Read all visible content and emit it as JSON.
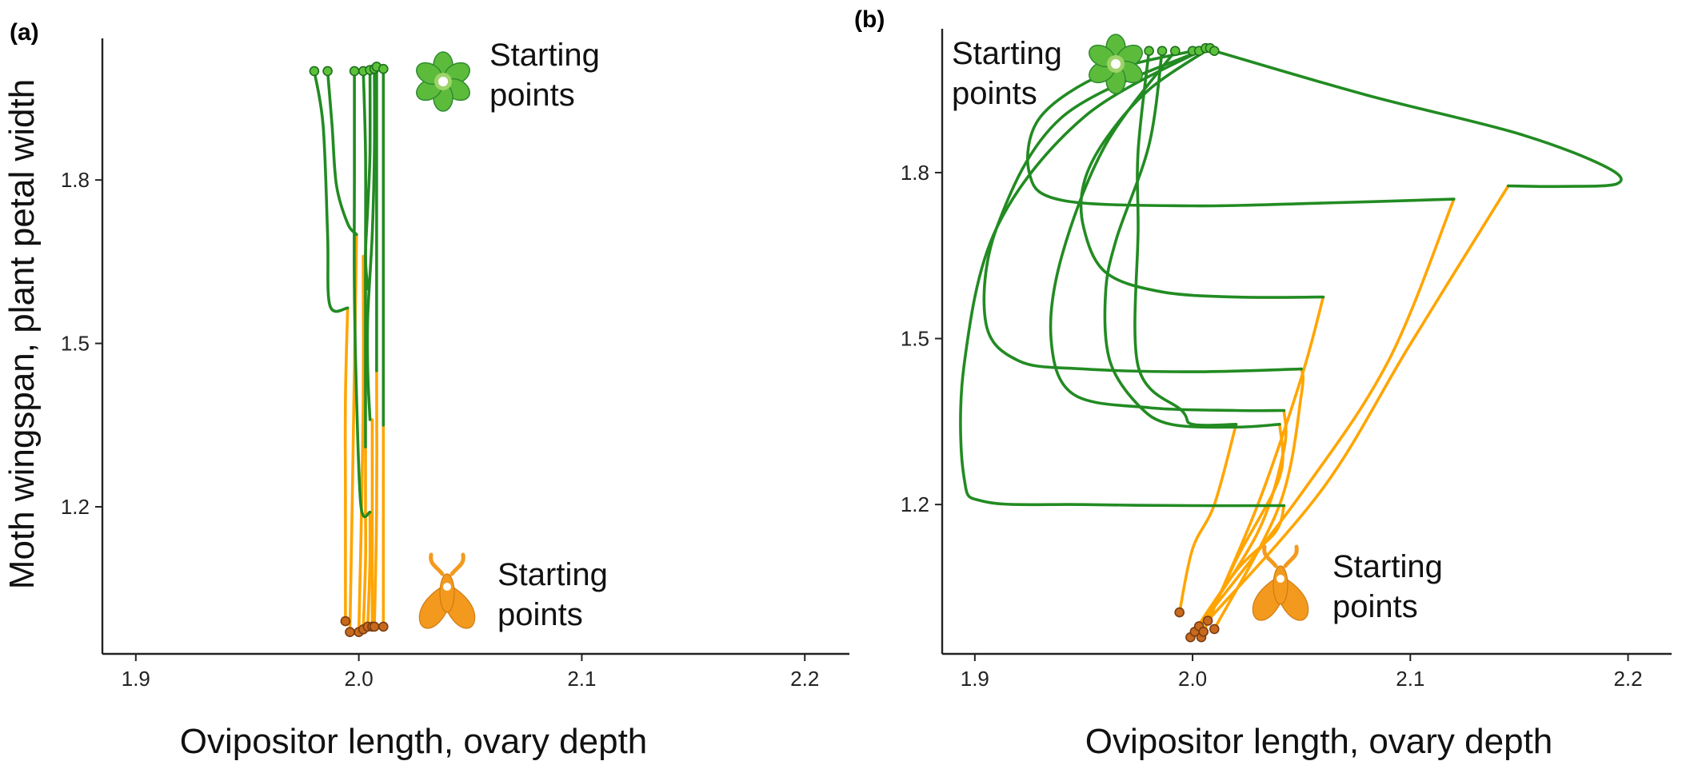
{
  "figure": {
    "y_axis_title": "Moth wingspan, plant petal width",
    "x_axis_title": "Ovipositor length, ovary depth"
  },
  "colors": {
    "plant": "#228B22",
    "moth": "#FFA500",
    "plant_point": "#5CC23A",
    "moth_point": "#C86A1E",
    "flower_petal": "#5DBB3C",
    "moth_icon": "#F39A1E"
  },
  "icons": {
    "plant": "flower-icon",
    "moth": "moth-icon"
  },
  "chart_data": [
    {
      "panel": "(a)",
      "type": "line",
      "xlim": [
        1.885,
        2.22
      ],
      "ylim": [
        0.93,
        2.06
      ],
      "x_ticks": [
        1.9,
        2.0,
        2.1,
        2.2
      ],
      "x_tick_labels": [
        "1.9",
        "2.0",
        "2.1",
        "2.2"
      ],
      "y_ticks": [
        1.2,
        1.5,
        1.8
      ],
      "y_tick_labels": [
        "1.2",
        "1.5",
        "1.8"
      ],
      "grid": false,
      "annotations": [
        {
          "text_lines": [
            "Starting",
            "points"
          ],
          "icon": "flower-icon",
          "near": "plant starting points"
        },
        {
          "text_lines": [
            "Starting",
            "points"
          ],
          "icon": "moth-icon",
          "near": "moth starting points"
        }
      ],
      "series": [
        {
          "trait": "plant",
          "trajectories": [
            [
              [
                1.98,
                2.0
              ],
              [
                1.984,
                1.9
              ],
              [
                1.986,
                1.7
              ],
              [
                1.987,
                1.57
              ],
              [
                1.995,
                1.565
              ]
            ],
            [
              [
                1.986,
                2.0
              ],
              [
                1.988,
                1.9
              ],
              [
                1.99,
                1.79
              ],
              [
                1.995,
                1.72
              ],
              [
                1.999,
                1.7
              ]
            ],
            [
              [
                1.998,
                2.0
              ],
              [
                1.998,
                1.8
              ],
              [
                1.998,
                1.6
              ],
              [
                1.999,
                1.4
              ],
              [
                2.001,
                1.2
              ],
              [
                2.005,
                1.19
              ]
            ],
            [
              [
                2.002,
                2.0
              ],
              [
                2.003,
                1.85
              ],
              [
                2.003,
                1.65
              ],
              [
                2.003,
                1.5
              ],
              [
                2.003,
                1.31
              ]
            ],
            [
              [
                2.005,
                2.002
              ],
              [
                2.005,
                1.85
              ],
              [
                2.004,
                1.75
              ],
              [
                2.003,
                1.66
              ],
              [
                2.004,
                1.6
              ]
            ],
            [
              [
                2.007,
                2.004
              ],
              [
                2.007,
                1.85
              ],
              [
                2.006,
                1.7
              ],
              [
                2.004,
                1.55
              ],
              [
                2.004,
                1.45
              ],
              [
                2.005,
                1.36
              ]
            ],
            [
              [
                2.008,
                2.008
              ],
              [
                2.008,
                1.8
              ],
              [
                2.008,
                1.6
              ],
              [
                2.008,
                1.45
              ]
            ],
            [
              [
                2.011,
                2.004
              ],
              [
                2.011,
                1.8
              ],
              [
                2.011,
                1.55
              ],
              [
                2.011,
                1.35
              ]
            ]
          ]
        },
        {
          "trait": "moth",
          "trajectories": [
            [
              [
                1.994,
                0.99
              ],
              [
                1.994,
                1.2
              ],
              [
                1.994,
                1.4
              ],
              [
                1.995,
                1.565
              ]
            ],
            [
              [
                1.996,
                0.97
              ],
              [
                1.997,
                1.2
              ],
              [
                1.998,
                1.45
              ],
              [
                1.999,
                1.7
              ]
            ],
            [
              [
                2.0,
                0.97
              ],
              [
                2.001,
                1.15
              ],
              [
                2.002,
                1.4
              ],
              [
                2.002,
                1.66
              ]
            ],
            [
              [
                2.002,
                0.975
              ],
              [
                2.003,
                1.1
              ],
              [
                2.003,
                1.2
              ],
              [
                2.003,
                1.31
              ]
            ],
            [
              [
                2.004,
                0.98
              ],
              [
                2.005,
                1.1
              ],
              [
                2.005,
                1.19
              ]
            ],
            [
              [
                2.006,
                0.98
              ],
              [
                2.006,
                1.2
              ],
              [
                2.006,
                1.36
              ]
            ],
            [
              [
                2.007,
                0.98
              ],
              [
                2.008,
                1.2
              ],
              [
                2.008,
                1.45
              ]
            ],
            [
              [
                2.011,
                0.98
              ],
              [
                2.011,
                1.15
              ],
              [
                2.011,
                1.35
              ]
            ]
          ]
        },
        {
          "trait": "plant",
          "role": "starting points",
          "points": [
            [
              1.98,
              2.0
            ],
            [
              1.986,
              2.0
            ],
            [
              1.998,
              2.0
            ],
            [
              2.002,
              2.0
            ],
            [
              2.005,
              2.002
            ],
            [
              2.007,
              2.004
            ],
            [
              2.008,
              2.008
            ],
            [
              2.011,
              2.004
            ]
          ]
        },
        {
          "trait": "moth",
          "role": "starting points",
          "points": [
            [
              1.994,
              0.99
            ],
            [
              1.996,
              0.97
            ],
            [
              2.0,
              0.97
            ],
            [
              2.002,
              0.975
            ],
            [
              2.004,
              0.98
            ],
            [
              2.006,
              0.98
            ],
            [
              2.007,
              0.98
            ],
            [
              2.011,
              0.98
            ]
          ]
        }
      ]
    },
    {
      "panel": "(b)",
      "type": "line",
      "xlim": [
        1.885,
        2.22
      ],
      "ylim": [
        0.93,
        2.06
      ],
      "x_ticks": [
        1.9,
        2.0,
        2.1,
        2.2
      ],
      "x_tick_labels": [
        "1.9",
        "2.0",
        "2.1",
        "2.2"
      ],
      "y_ticks": [
        1.2,
        1.5,
        1.8
      ],
      "y_tick_labels": [
        "1.2",
        "1.5",
        "1.8"
      ],
      "grid": false,
      "annotations": [
        {
          "text_lines": [
            "Starting",
            "points"
          ],
          "icon": "flower-icon",
          "near": "plant starting points"
        },
        {
          "text_lines": [
            "Starting",
            "points"
          ],
          "icon": "moth-icon",
          "near": "moth starting points"
        }
      ],
      "series": [
        {
          "trait": "plant",
          "trajectories": [
            [
              [
                2.01,
                2.02
              ],
              [
                2.08,
                1.94
              ],
              [
                2.15,
                1.87
              ],
              [
                2.19,
                1.81
              ],
              [
                2.195,
                1.78
              ],
              [
                2.17,
                1.775
              ],
              [
                2.145,
                1.776
              ]
            ],
            [
              [
                2.0,
                2.02
              ],
              [
                1.96,
                1.98
              ],
              [
                1.93,
                1.9
              ],
              [
                1.925,
                1.8
              ],
              [
                1.94,
                1.75
              ],
              [
                2.0,
                1.74
              ],
              [
                2.06,
                1.745
              ],
              [
                2.12,
                1.752
              ]
            ],
            [
              [
                2.008,
                2.025
              ],
              [
                1.98,
                1.95
              ],
              [
                1.96,
                1.86
              ],
              [
                1.95,
                1.78
              ],
              [
                1.95,
                1.7
              ],
              [
                1.96,
                1.62
              ],
              [
                1.985,
                1.585
              ],
              [
                2.02,
                1.575
              ],
              [
                2.06,
                1.575
              ]
            ],
            [
              [
                2.003,
                2.02
              ],
              [
                1.94,
                1.9
              ],
              [
                1.91,
                1.7
              ],
              [
                1.905,
                1.53
              ],
              [
                1.92,
                1.46
              ],
              [
                1.95,
                1.445
              ],
              [
                2.0,
                1.44
              ],
              [
                2.05,
                1.445
              ]
            ],
            [
              [
                1.992,
                2.02
              ],
              [
                1.96,
                1.85
              ],
              [
                1.94,
                1.65
              ],
              [
                1.935,
                1.5
              ],
              [
                1.945,
                1.4
              ],
              [
                1.98,
                1.375
              ],
              [
                2.02,
                1.37
              ],
              [
                2.042,
                1.37
              ]
            ],
            [
              [
                2.006,
                2.025
              ],
              [
                1.95,
                1.9
              ],
              [
                1.91,
                1.7
              ],
              [
                1.895,
                1.45
              ],
              [
                1.895,
                1.25
              ],
              [
                1.905,
                1.205
              ],
              [
                1.95,
                1.2
              ],
              [
                2.0,
                1.198
              ],
              [
                2.042,
                1.198
              ]
            ],
            [
              [
                1.986,
                2.02
              ],
              [
                1.98,
                1.85
              ],
              [
                1.965,
                1.68
              ],
              [
                1.96,
                1.58
              ],
              [
                1.962,
                1.46
              ],
              [
                1.975,
                1.38
              ],
              [
                1.99,
                1.345
              ],
              [
                2.02,
                1.34
              ],
              [
                2.04,
                1.345
              ]
            ],
            [
              [
                1.98,
                2.02
              ],
              [
                1.975,
                1.84
              ],
              [
                1.975,
                1.7
              ],
              [
                1.975,
                1.45
              ],
              [
                1.995,
                1.37
              ],
              [
                2.0,
                1.345
              ],
              [
                2.02,
                1.345
              ]
            ]
          ]
        },
        {
          "trait": "moth",
          "trajectories": [
            [
              [
                2.007,
                0.99
              ],
              [
                2.06,
                1.23
              ],
              [
                2.1,
                1.49
              ],
              [
                2.145,
                1.776
              ]
            ],
            [
              [
                2.003,
                0.98
              ],
              [
                2.05,
                1.22
              ],
              [
                2.09,
                1.46
              ],
              [
                2.12,
                1.752
              ]
            ],
            [
              [
                2.005,
                0.97
              ],
              [
                2.03,
                1.2
              ],
              [
                2.05,
                1.43
              ],
              [
                2.06,
                1.575
              ]
            ],
            [
              [
                2.01,
                0.975
              ],
              [
                2.04,
                1.2
              ],
              [
                2.05,
                1.4
              ],
              [
                2.05,
                1.445
              ]
            ],
            [
              [
                2.001,
                0.97
              ],
              [
                2.03,
                1.15
              ],
              [
                2.042,
                1.3
              ],
              [
                2.042,
                1.37
              ]
            ],
            [
              [
                1.999,
                0.96
              ],
              [
                2.02,
                1.08
              ],
              [
                2.038,
                1.15
              ],
              [
                2.042,
                1.198
              ]
            ],
            [
              [
                2.004,
                0.96
              ],
              [
                2.02,
                1.1
              ],
              [
                2.04,
                1.25
              ],
              [
                2.04,
                1.345
              ]
            ],
            [
              [
                1.994,
                1.005
              ],
              [
                2.0,
                1.12
              ],
              [
                2.01,
                1.2
              ],
              [
                2.02,
                1.345
              ]
            ]
          ]
        },
        {
          "trait": "plant",
          "role": "starting points",
          "points": [
            [
              1.98,
              2.02
            ],
            [
              1.986,
              2.02
            ],
            [
              1.992,
              2.02
            ],
            [
              2.0,
              2.02
            ],
            [
              2.003,
              2.02
            ],
            [
              2.006,
              2.025
            ],
            [
              2.008,
              2.025
            ],
            [
              2.01,
              2.02
            ]
          ]
        },
        {
          "trait": "moth",
          "role": "starting points",
          "points": [
            [
              1.994,
              1.005
            ],
            [
              1.999,
              0.96
            ],
            [
              2.001,
              0.97
            ],
            [
              2.003,
              0.98
            ],
            [
              2.004,
              0.96
            ],
            [
              2.005,
              0.97
            ],
            [
              2.007,
              0.99
            ],
            [
              2.01,
              0.975
            ]
          ]
        }
      ]
    }
  ]
}
